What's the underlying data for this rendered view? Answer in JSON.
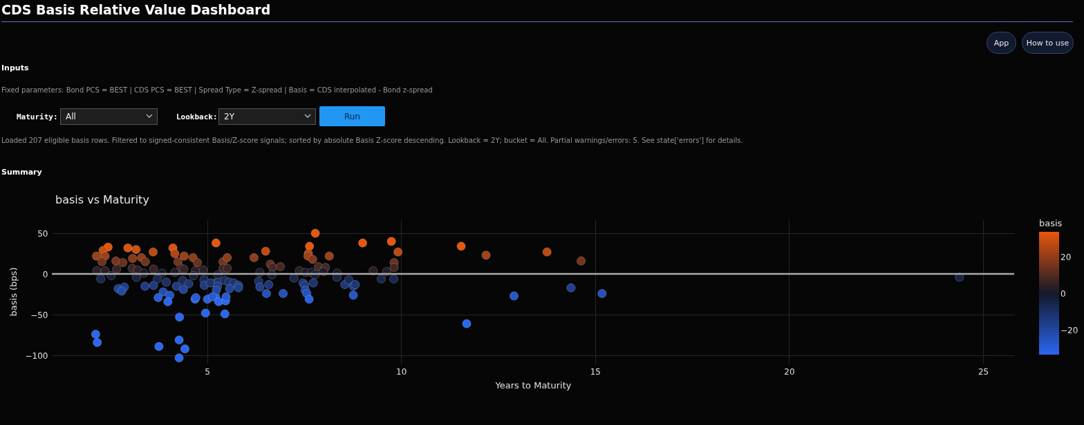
{
  "chart_data": {
    "type": "scatter",
    "title": "basis vs Maturity",
    "xlabel": "Years to Maturity",
    "ylabel": "basis (bps)",
    "clabel": "basis",
    "annotations": [
      "CDS Basis Relative Value Dashboard",
      "App",
      "How to use",
      "Inputs",
      "Fixed parameters: Bond PCS = BEST | CDS PCS = BEST | Spread Type = Z-spread | Basis = CDS interpolated - Bond z-spread",
      "Maturity:",
      "All",
      "Lookback:",
      "2Y",
      "Run",
      "Loaded 207 eligible basis rows. Filtered to signed-consistent Basis/Z-score signals; sorted by absolute Basis Z-score descending. Lookback = 2Y; bucket = All. Partial warnings/errors: 5. See state['errors'] for details.",
      "Summary"
    ],
    "x": [
      2.45,
      2.15,
      2.32,
      2.37,
      2.29,
      2.96,
      3.17,
      3.61,
      3.08,
      3.31,
      3.41,
      2.65,
      2.83,
      4.12,
      4.17,
      4.41,
      4.25,
      4.64,
      4.75,
      5.23,
      2.16,
      2.37,
      2.67,
      3.07,
      3.21,
      3.62,
      4.33,
      4.4,
      4.7,
      4.9,
      2.53,
      3.37,
      3.84,
      4.17,
      4.65,
      2.26,
      3.18,
      2.71,
      2.87,
      2.8,
      3.4,
      3.62,
      3.95,
      3.72,
      4.21,
      4.37,
      4.53,
      4.39,
      3.87,
      4.04,
      3.74,
      3.99,
      4.69,
      4.71,
      5.01,
      5.22,
      4.92,
      4.93,
      5.21,
      4.96,
      4.29,
      2.13,
      2.17,
      3.76,
      4.28,
      4.43,
      4.28,
      7.79,
      6.51,
      6.21,
      7.64,
      7.61,
      7.6,
      7.72,
      8.15,
      9.01,
      9.75,
      9.92,
      9.82,
      9.82,
      5.41,
      5.52,
      5.41,
      5.52,
      6.63,
      6.69,
      6.89,
      7.87,
      8.05,
      8.0,
      5.28,
      6.36,
      6.67,
      7.38,
      7.54,
      7.69,
      7.78,
      8.35,
      8.35,
      9.28,
      9.63,
      7.24,
      5.09,
      5.29,
      5.46,
      5.57,
      5.69,
      5.81,
      5.81,
      5.58,
      5.27,
      5.24,
      5.14,
      5.3,
      5.48,
      5.49,
      5.46,
      6.33,
      6.36,
      6.59,
      6.53,
      6.96,
      7.47,
      7.52,
      7.74,
      7.53,
      7.57,
      7.63,
      8.55,
      8.65,
      8.77,
      8.82,
      8.77,
      9.49,
      9.81,
      11.55,
      12.19,
      13.76,
      14.64,
      11.69,
      12.91,
      14.38,
      15.18,
      24.39
    ],
    "values": [
      33,
      22,
      29,
      22,
      15,
      32,
      30,
      27,
      19,
      20,
      15,
      16,
      14,
      32,
      25,
      22,
      15,
      20,
      14,
      38,
      4,
      4,
      6,
      7,
      5,
      6,
      7,
      6,
      4,
      5,
      -2,
      1,
      1,
      2,
      -2,
      -6,
      -4,
      -18,
      -16,
      -21,
      -15,
      -14,
      -10,
      -6,
      -15,
      -8,
      -12,
      -19,
      -22,
      -26,
      -29,
      -34,
      -31,
      -29,
      -31,
      -28,
      -7,
      -14,
      -11,
      -48,
      -53,
      -74,
      -84,
      -89,
      -81,
      -92,
      -103,
      50,
      28,
      20,
      34,
      25,
      22,
      18,
      22,
      38,
      40,
      27,
      14,
      8,
      15,
      20,
      7,
      7,
      12,
      8,
      9,
      9,
      8,
      3,
      -1,
      2,
      -1,
      4,
      2,
      2,
      -1,
      1,
      -4,
      4,
      3,
      -5,
      -11,
      -10,
      -8,
      -10,
      -11,
      -14,
      -17,
      -18,
      -15,
      -20,
      -28,
      -34,
      -33,
      -28,
      -49,
      -9,
      -16,
      -13,
      -24,
      -24,
      -11,
      -14,
      -11,
      -20,
      -24,
      -31,
      -13,
      -7,
      -15,
      -13,
      -26,
      -6,
      -6,
      34,
      23,
      27,
      16,
      -61,
      -27,
      -17,
      -24,
      -4
    ],
    "cvalues": [
      33,
      22,
      29,
      22,
      15,
      32,
      30,
      27,
      19,
      20,
      15,
      16,
      14,
      32,
      25,
      22,
      15,
      20,
      14,
      38,
      4,
      4,
      6,
      7,
      5,
      6,
      7,
      6,
      4,
      5,
      -2,
      1,
      1,
      2,
      -2,
      -6,
      -4,
      -18,
      -16,
      -21,
      -15,
      -14,
      -10,
      -6,
      -15,
      -8,
      -12,
      -19,
      -22,
      -26,
      -29,
      -34,
      -31,
      -29,
      -31,
      -28,
      -7,
      -14,
      -11,
      -48,
      -53,
      -74,
      -84,
      -89,
      -81,
      -92,
      -103,
      50,
      28,
      20,
      34,
      25,
      22,
      18,
      22,
      38,
      40,
      27,
      14,
      8,
      15,
      20,
      7,
      7,
      12,
      8,
      9,
      9,
      8,
      3,
      -1,
      2,
      -1,
      4,
      2,
      2,
      -1,
      1,
      -4,
      4,
      3,
      -5,
      -11,
      -10,
      -8,
      -10,
      -11,
      -14,
      -17,
      -18,
      -15,
      -20,
      -28,
      -34,
      -33,
      -28,
      -49,
      -9,
      -16,
      -13,
      -24,
      -24,
      -11,
      -14,
      -11,
      -20,
      -24,
      -31,
      -13,
      -7,
      -15,
      -13,
      -26,
      -6,
      -6,
      34,
      23,
      27,
      16,
      -61,
      -27,
      -17,
      -24,
      -4
    ],
    "clim": [
      -33,
      34
    ],
    "cticks": [
      20,
      0,
      -20
    ],
    "xlim": [
      1.0,
      25.8
    ],
    "xticks": [
      5,
      10,
      15,
      20,
      25
    ],
    "ylim": [
      -110,
      67
    ],
    "yticks": [
      -100,
      -50,
      0,
      50
    ],
    "ref_lines": [
      {
        "axis": "y",
        "value": 0,
        "color": "#aaaaaa"
      }
    ],
    "grid": true
  }
}
